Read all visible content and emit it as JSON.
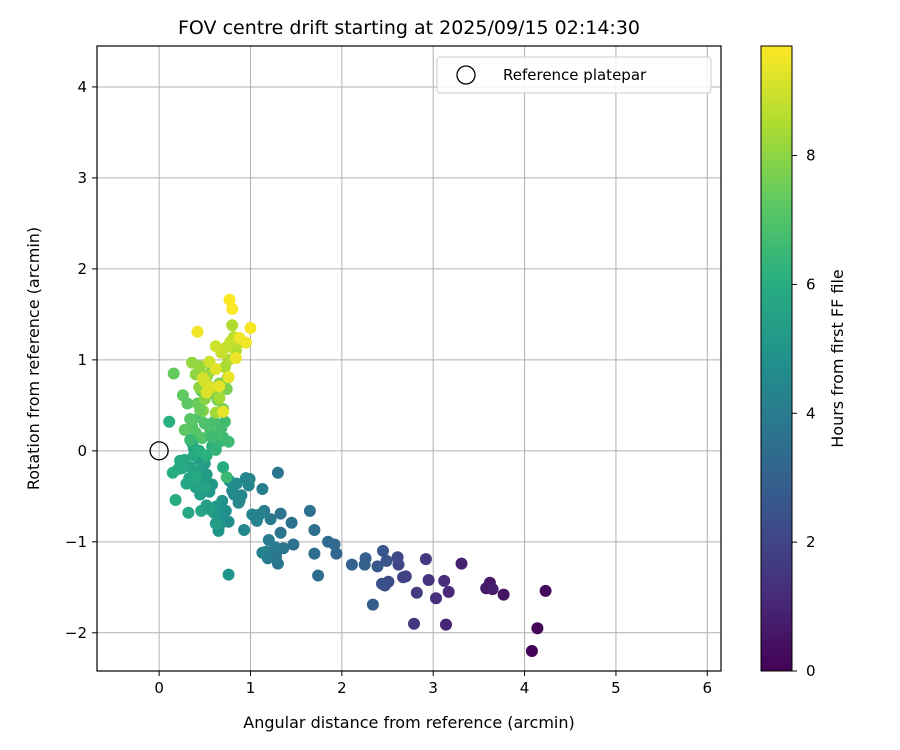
{
  "chart_data": {
    "type": "scatter",
    "title": "FOV centre drift starting at 2025/09/15 02:14:30",
    "xlabel": "Angular distance from reference (arcmin)",
    "ylabel": "Rotation from reference (arcmin)",
    "xlim": [
      -0.68,
      6.15
    ],
    "ylim": [
      -2.42,
      4.45
    ],
    "xticks": [
      0,
      1,
      2,
      3,
      4,
      5,
      6
    ],
    "yticks": [
      -2,
      -1,
      0,
      1,
      2,
      3,
      4
    ],
    "grid": true,
    "legend": {
      "placement": "top-right",
      "entries": [
        "Reference platepar"
      ]
    },
    "reference_point": {
      "x": 0,
      "y": 0
    },
    "colorbar": {
      "label": "Hours from first FF file",
      "range": [
        0,
        9.7
      ],
      "ticks": [
        0,
        2,
        4,
        6,
        8
      ],
      "colormap": "viridis"
    },
    "points": [
      [
        4.08,
        -2.2,
        0.05
      ],
      [
        4.14,
        -1.95,
        0.15
      ],
      [
        4.23,
        -1.54,
        0.3
      ],
      [
        3.77,
        -1.58,
        0.5
      ],
      [
        3.62,
        -1.45,
        0.6
      ],
      [
        3.58,
        -1.51,
        0.7
      ],
      [
        3.65,
        -1.52,
        0.8
      ],
      [
        3.31,
        -1.24,
        0.9
      ],
      [
        3.14,
        -1.91,
        1.0
      ],
      [
        3.17,
        -1.55,
        1.1
      ],
      [
        3.12,
        -1.43,
        1.2
      ],
      [
        3.03,
        -1.62,
        1.3
      ],
      [
        2.95,
        -1.42,
        1.4
      ],
      [
        2.92,
        -1.19,
        1.5
      ],
      [
        2.79,
        -1.9,
        1.6
      ],
      [
        2.82,
        -1.56,
        1.7
      ],
      [
        2.7,
        -1.38,
        1.8
      ],
      [
        2.67,
        -1.39,
        1.9
      ],
      [
        2.62,
        -1.25,
        2.0
      ],
      [
        2.61,
        -1.17,
        2.1
      ],
      [
        2.51,
        -1.44,
        2.2
      ],
      [
        2.47,
        -1.48,
        2.3
      ],
      [
        2.44,
        -1.46,
        2.4
      ],
      [
        2.49,
        -1.21,
        2.5
      ],
      [
        2.45,
        -1.1,
        2.6
      ],
      [
        2.39,
        -1.27,
        2.7
      ],
      [
        2.34,
        -1.69,
        2.8
      ],
      [
        2.26,
        -1.18,
        2.9
      ],
      [
        2.25,
        -1.25,
        3.0
      ],
      [
        2.11,
        -1.25,
        3.1
      ],
      [
        1.94,
        -1.13,
        3.2
      ],
      [
        1.92,
        -1.03,
        3.3
      ],
      [
        1.85,
        -1.0,
        3.35
      ],
      [
        1.74,
        -1.37,
        3.4
      ],
      [
        1.7,
        -1.13,
        3.45
      ],
      [
        1.7,
        -0.87,
        3.5
      ],
      [
        1.65,
        -0.66,
        3.55
      ],
      [
        1.47,
        -1.03,
        3.6
      ],
      [
        1.45,
        -0.79,
        3.65
      ],
      [
        1.36,
        -1.07,
        3.7
      ],
      [
        1.33,
        -0.9,
        3.72
      ],
      [
        1.33,
        -0.69,
        3.75
      ],
      [
        1.3,
        -0.24,
        3.78
      ],
      [
        1.3,
        -1.24,
        3.8
      ],
      [
        1.28,
        -1.16,
        3.85
      ],
      [
        1.27,
        -1.06,
        3.9
      ],
      [
        1.22,
        -0.75,
        3.92
      ],
      [
        1.19,
        -1.18,
        3.95
      ],
      [
        1.2,
        -0.98,
        4.0
      ],
      [
        1.17,
        -1.11,
        4.05
      ],
      [
        1.15,
        -0.66,
        4.1
      ],
      [
        1.13,
        -0.42,
        4.15
      ],
      [
        1.13,
        -1.12,
        4.2
      ],
      [
        1.1,
        -0.7,
        4.25
      ],
      [
        1.07,
        -0.77,
        4.3
      ],
      [
        0.99,
        -0.31,
        4.35
      ],
      [
        0.98,
        -0.38,
        4.4
      ],
      [
        0.93,
        -0.87,
        4.45
      ],
      [
        0.9,
        -0.49,
        4.5
      ],
      [
        0.87,
        -0.57,
        4.55
      ],
      [
        0.85,
        -0.36,
        4.6
      ],
      [
        0.8,
        -0.44,
        4.65
      ],
      [
        0.77,
        -0.33,
        4.7
      ],
      [
        0.76,
        -0.78,
        4.75
      ],
      [
        0.73,
        -0.66,
        4.8
      ],
      [
        0.7,
        -0.72,
        4.85
      ],
      [
        0.69,
        -0.55,
        4.9
      ],
      [
        0.66,
        -0.82,
        4.95
      ],
      [
        0.65,
        -0.88,
        5.0
      ],
      [
        0.63,
        -0.61,
        5.05
      ],
      [
        0.6,
        -0.68,
        5.1
      ],
      [
        0.58,
        -0.37,
        5.15
      ],
      [
        0.55,
        -0.45,
        5.2
      ],
      [
        0.52,
        -0.26,
        5.25
      ],
      [
        0.5,
        -0.14,
        5.3
      ],
      [
        0.48,
        -0.32,
        5.35
      ],
      [
        0.45,
        -0.48,
        5.4
      ],
      [
        0.44,
        -0.09,
        5.45
      ],
      [
        0.42,
        -0.22,
        5.5
      ],
      [
        0.4,
        -0.4,
        5.55
      ],
      [
        0.38,
        0.03,
        5.6
      ],
      [
        0.35,
        -0.18,
        5.65
      ],
      [
        0.33,
        -0.3,
        5.7
      ],
      [
        0.32,
        -0.68,
        5.72
      ],
      [
        0.3,
        -0.36,
        5.75
      ],
      [
        0.28,
        -0.1,
        5.78
      ],
      [
        0.25,
        -0.19,
        5.8
      ],
      [
        0.23,
        -0.11,
        5.85
      ],
      [
        0.21,
        -0.2,
        5.9
      ],
      [
        0.18,
        -0.54,
        5.95
      ],
      [
        0.15,
        -0.24,
        6.0
      ],
      [
        0.76,
        -1.36,
        5.0
      ],
      [
        0.62,
        -0.8,
        5.3
      ],
      [
        0.55,
        -0.64,
        5.5
      ],
      [
        0.5,
        -0.4,
        5.6
      ],
      [
        0.46,
        -0.66,
        5.7
      ],
      [
        0.38,
        -0.05,
        5.8
      ],
      [
        0.36,
        0.09,
        5.9
      ],
      [
        0.44,
        0.0,
        6.0
      ],
      [
        0.52,
        -0.05,
        6.1
      ],
      [
        0.58,
        0.05,
        6.2
      ],
      [
        0.62,
        0.01,
        6.3
      ],
      [
        0.66,
        0.1,
        6.4
      ],
      [
        0.7,
        0.15,
        6.5
      ],
      [
        0.74,
        -0.29,
        6.55
      ],
      [
        0.76,
        0.1,
        6.6
      ],
      [
        0.72,
        0.32,
        6.65
      ],
      [
        0.68,
        0.25,
        6.7
      ],
      [
        0.64,
        0.18,
        6.75
      ],
      [
        0.6,
        0.32,
        6.8
      ],
      [
        0.56,
        0.21,
        6.85
      ],
      [
        0.5,
        0.3,
        6.9
      ],
      [
        0.47,
        0.14,
        6.95
      ],
      [
        0.44,
        0.37,
        7.0
      ],
      [
        0.4,
        0.2,
        7.05
      ],
      [
        0.36,
        0.27,
        7.1
      ],
      [
        0.34,
        0.35,
        7.15
      ],
      [
        0.31,
        0.52,
        7.2
      ],
      [
        0.28,
        0.23,
        7.25
      ],
      [
        0.26,
        0.61,
        7.3
      ],
      [
        0.16,
        0.85,
        7.35
      ],
      [
        0.11,
        0.32,
        6.1
      ],
      [
        0.42,
        0.52,
        7.4
      ],
      [
        0.46,
        0.66,
        7.45
      ],
      [
        0.53,
        0.72,
        7.5
      ],
      [
        0.6,
        0.63,
        7.55
      ],
      [
        0.64,
        0.56,
        7.6
      ],
      [
        0.7,
        0.46,
        7.65
      ],
      [
        0.74,
        0.68,
        7.7
      ],
      [
        0.75,
        0.8,
        7.75
      ],
      [
        0.66,
        0.74,
        7.8
      ],
      [
        0.58,
        0.89,
        7.85
      ],
      [
        0.5,
        0.57,
        7.9
      ],
      [
        0.48,
        0.44,
        7.95
      ],
      [
        0.44,
        0.7,
        8.0
      ],
      [
        0.4,
        0.84,
        8.05
      ],
      [
        0.36,
        0.97,
        8.1
      ],
      [
        0.45,
        0.93,
        8.15
      ],
      [
        0.53,
        0.83,
        8.2
      ],
      [
        0.58,
        0.69,
        8.25
      ],
      [
        0.62,
        0.42,
        8.3
      ],
      [
        0.66,
        0.58,
        8.35
      ],
      [
        0.72,
        0.92,
        8.4
      ],
      [
        0.76,
        1.0,
        8.45
      ],
      [
        0.8,
        1.38,
        8.5
      ],
      [
        0.84,
        1.1,
        8.55
      ],
      [
        0.86,
        1.18,
        8.6
      ],
      [
        0.82,
        1.25,
        8.7
      ],
      [
        0.78,
        1.2,
        8.8
      ],
      [
        0.74,
        1.14,
        8.85
      ],
      [
        0.68,
        1.08,
        8.9
      ],
      [
        0.62,
        1.15,
        8.95
      ],
      [
        0.55,
        0.98,
        9.0
      ],
      [
        0.5,
        0.76,
        9.05
      ],
      [
        0.48,
        0.8,
        9.1
      ],
      [
        0.52,
        0.64,
        9.15
      ],
      [
        0.56,
        0.7,
        9.2
      ],
      [
        0.62,
        0.9,
        9.25
      ],
      [
        0.66,
        0.71,
        9.3
      ],
      [
        0.7,
        0.43,
        9.35
      ],
      [
        0.76,
        0.81,
        9.4
      ],
      [
        0.84,
        1.02,
        9.45
      ],
      [
        0.88,
        1.24,
        9.5
      ],
      [
        0.95,
        1.19,
        9.55
      ],
      [
        1.0,
        1.35,
        9.6
      ],
      [
        0.8,
        1.56,
        9.65
      ],
      [
        0.77,
        1.66,
        9.7
      ],
      [
        0.42,
        1.31,
        9.5
      ],
      [
        0.45,
        0.45,
        7.5
      ],
      [
        0.34,
        0.12,
        6.5
      ],
      [
        0.4,
        -0.28,
        5.8
      ],
      [
        0.52,
        -0.6,
        5.4
      ],
      [
        0.58,
        0.15,
        6.6
      ],
      [
        0.7,
        -0.18,
        6.0
      ],
      [
        0.82,
        -0.48,
        4.6
      ],
      [
        0.88,
        -0.55,
        4.5
      ],
      [
        0.95,
        -0.3,
        4.4
      ],
      [
        1.02,
        -0.7,
        4.3
      ]
    ]
  }
}
